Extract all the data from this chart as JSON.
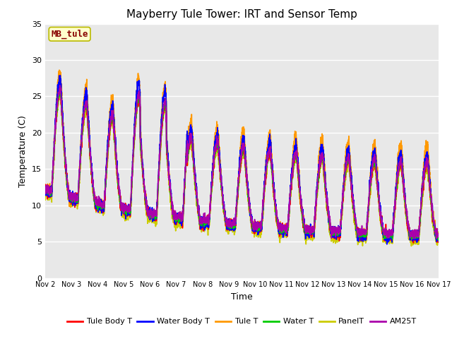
{
  "title": "Mayberry Tule Tower: IRT and Sensor Temp",
  "xlabel": "Time",
  "ylabel": "Temperature (C)",
  "ylim": [
    0,
    35
  ],
  "yticks": [
    0,
    5,
    10,
    15,
    20,
    25,
    30,
    35
  ],
  "xlim": [
    0,
    360
  ],
  "xtick_labels": [
    "Nov 2",
    "Nov 3",
    "Nov 4",
    "Nov 5",
    "Nov 6",
    "Nov 7",
    "Nov 8",
    "Nov 9",
    "Nov 10",
    "Nov 11",
    "Nov 12",
    "Nov 13",
    "Nov 14",
    "Nov 15",
    "Nov 16",
    "Nov 17"
  ],
  "xtick_positions": [
    0,
    24,
    48,
    72,
    96,
    120,
    144,
    168,
    192,
    216,
    240,
    264,
    288,
    312,
    336,
    360
  ],
  "legend_entries": [
    "Tule Body T",
    "Water Body T",
    "Tule T",
    "Water T",
    "PanelT",
    "AM25T"
  ],
  "line_colors": [
    "#ff0000",
    "#0000ff",
    "#ff9900",
    "#00cc00",
    "#cccc00",
    "#aa00aa"
  ],
  "line_widths": [
    1.2,
    1.2,
    1.2,
    1.2,
    1.2,
    1.2
  ],
  "annotation_text": "MB_tule",
  "annotation_color": "#880000",
  "annotation_bg": "#ffffcc",
  "annotation_border": "#bbbb00",
  "bg_color": "#e8e8e8",
  "grid_color": "#ffffff",
  "title_fontsize": 11,
  "axis_label_fontsize": 9,
  "tick_fontsize": 8
}
